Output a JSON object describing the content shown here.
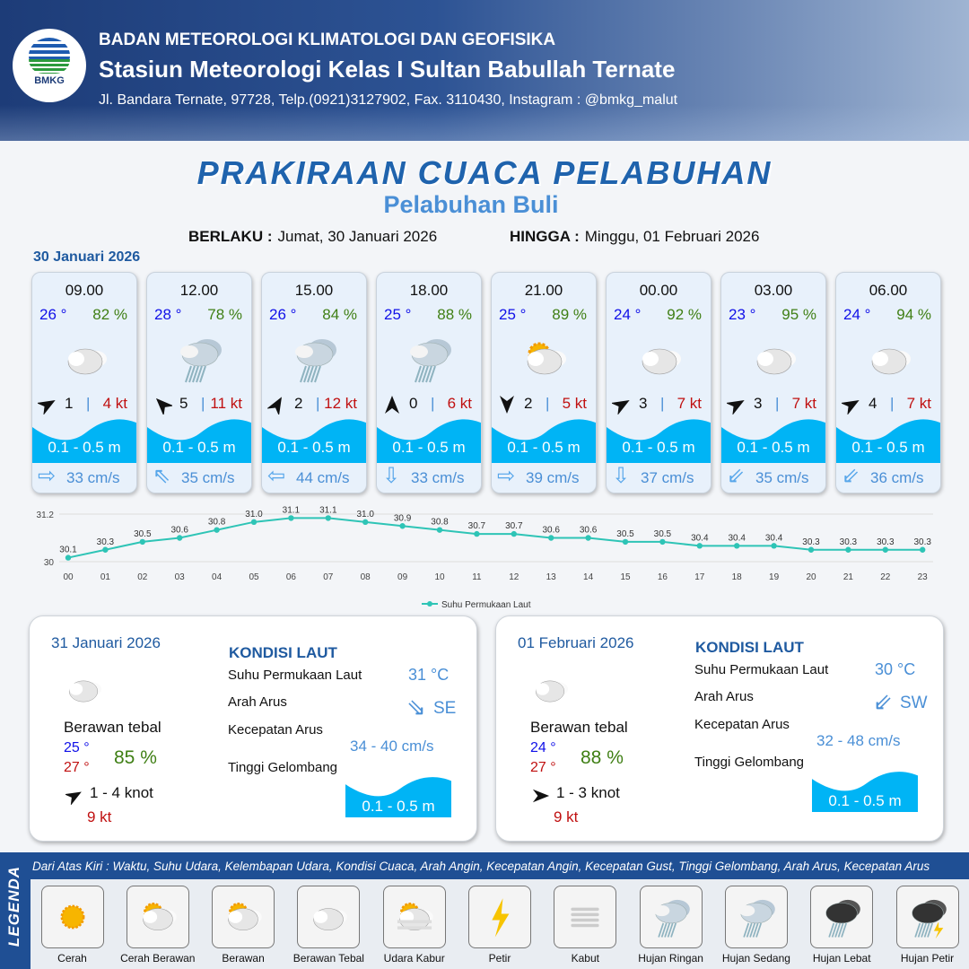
{
  "header": {
    "org": "BADAN METEOROLOGI KLIMATOLOGI DAN GEOFISIKA",
    "station": "Stasiun Meteorologi Kelas I Sultan Babullah Ternate",
    "address": "Jl. Bandara Ternate, 97728, Telp.(0921)3127902, Fax. 3110430, Instagram : @bmkg_malut",
    "logo_text": "BMKG"
  },
  "title": "PRAKIRAAN CUACA PELABUHAN",
  "subtitle": "Pelabuhan Buli",
  "validity": {
    "from_label": "BERLAKU :",
    "from": "Jumat, 30 Januari 2026",
    "to_label": "HINGGA :",
    "to": "Minggu, 01 Februari 2026"
  },
  "day_label": "30 Januari 2026",
  "forecasts": [
    {
      "time": "09.00",
      "temp": "26 °",
      "rh": "82 %",
      "weather": "berawan-tebal",
      "wind_dir_deg": 60,
      "wind": "1",
      "gust": "4 kt",
      "wave": "0.1 - 0.5 m",
      "current_dir": "east",
      "current_arrow": "⇨",
      "current": "33 cm/s"
    },
    {
      "time": "12.00",
      "temp": "28 °",
      "rh": "78 %",
      "weather": "hujan-ringan",
      "wind_dir_deg": 315,
      "wind": "5",
      "gust": "11 kt",
      "wave": "0.1 - 0.5 m",
      "current_dir": "northwest",
      "current_arrow": "⇖",
      "current": "35 cm/s"
    },
    {
      "time": "15.00",
      "temp": "26 °",
      "rh": "84 %",
      "weather": "hujan-ringan",
      "wind_dir_deg": 30,
      "wind": "2",
      "gust": "12 kt",
      "wave": "0.1 - 0.5 m",
      "current_dir": "west",
      "current_arrow": "⇦",
      "current": "44 cm/s"
    },
    {
      "time": "18.00",
      "temp": "25 °",
      "rh": "88 %",
      "weather": "hujan-ringan",
      "wind_dir_deg": 0,
      "wind": "0",
      "gust": "6 kt",
      "wave": "0.1 - 0.5 m",
      "current_dir": "south",
      "current_arrow": "⇩",
      "current": "33 cm/s"
    },
    {
      "time": "21.00",
      "temp": "25 °",
      "rh": "89 %",
      "weather": "cerah-berawan",
      "wind_dir_deg": 180,
      "wind": "2",
      "gust": "5 kt",
      "wave": "0.1 - 0.5 m",
      "current_dir": "east",
      "current_arrow": "⇨",
      "current": "39 cm/s"
    },
    {
      "time": "00.00",
      "temp": "24 °",
      "rh": "92 %",
      "weather": "berawan-tebal",
      "wind_dir_deg": 60,
      "wind": "3",
      "gust": "7 kt",
      "wave": "0.1 - 0.5 m",
      "current_dir": "south",
      "current_arrow": "⇩",
      "current": "37 cm/s"
    },
    {
      "time": "03.00",
      "temp": "23 °",
      "rh": "95 %",
      "weather": "berawan-tebal",
      "wind_dir_deg": 60,
      "wind": "3",
      "gust": "7 kt",
      "wave": "0.1 - 0.5 m",
      "current_dir": "southwest",
      "current_arrow": "⇙",
      "current": "35 cm/s"
    },
    {
      "time": "06.00",
      "temp": "24 °",
      "rh": "94 %",
      "weather": "berawan-tebal",
      "wind_dir_deg": 60,
      "wind": "4",
      "gust": "7 kt",
      "wave": "0.1 - 0.5 m",
      "current_dir": "southwest",
      "current_arrow": "⇙",
      "current": "36 cm/s"
    }
  ],
  "chart_data": {
    "type": "line",
    "x": [
      "00",
      "01",
      "02",
      "03",
      "04",
      "05",
      "06",
      "07",
      "08",
      "09",
      "10",
      "11",
      "12",
      "13",
      "14",
      "15",
      "16",
      "17",
      "18",
      "19",
      "20",
      "21",
      "22",
      "23"
    ],
    "series": [
      {
        "name": "Suhu Permukaan Laut",
        "values": [
          30.1,
          30.3,
          30.5,
          30.6,
          30.8,
          31.0,
          31.1,
          31.1,
          31.0,
          30.9,
          30.8,
          30.7,
          30.7,
          30.6,
          30.6,
          30.5,
          30.5,
          30.4,
          30.4,
          30.4,
          30.3,
          30.3,
          30.3,
          30.3
        ],
        "color": "#2ec4b6"
      }
    ],
    "ylim": [
      30,
      31.2
    ],
    "yticks": [
      "30",
      "31.2"
    ],
    "legend": "bottom",
    "grid": true
  },
  "days": [
    {
      "date": "31 Januari 2026",
      "weather": "Berawan tebal",
      "tmin": "25 °",
      "tmax": "27 °",
      "rh": "85 %",
      "wind_dir_deg": 60,
      "wind": "1  - 4 knot",
      "gust": "9 kt",
      "kondisi": "KONDISI LAUT",
      "sst_label": "Suhu Permukaan Laut",
      "sst": "31 °C",
      "arah_label": "Arah Arus",
      "arah": "SE",
      "arah_arrow": "⇘",
      "kec_label": "Kecepatan Arus",
      "kec": "34  - 40 cm/s",
      "tg_label": "Tinggi Gelombang",
      "wave": "0.1 - 0.5 m"
    },
    {
      "date": "01 Februari 2026",
      "weather": "Berawan tebal",
      "tmin": "24 °",
      "tmax": "27 °",
      "rh": "88 %",
      "wind_dir_deg": 90,
      "wind": "1  - 3 knot",
      "gust": "9 kt",
      "kondisi": "KONDISI LAUT",
      "sst_label": "Suhu Permukaan Laut",
      "sst": "30 °C",
      "arah_label": "Arah Arus",
      "arah": "SW",
      "arah_arrow": "⇙",
      "kec_label": "Kecepatan Arus",
      "kec": "32  - 48 cm/s",
      "tg_label": "Tinggi Gelombang",
      "wave": "0.1 - 0.5 m"
    }
  ],
  "legend": {
    "title": "LEGENDA",
    "description": "Dari Atas Kiri : Waktu, Suhu Udara, Kelembapan Udara, Kondisi Cuaca, Arah Angin, Kecepatan Angin, Kecepatan Gust, Tinggi Gelombang, Arah Arus, Kecepatan Arus",
    "items": [
      {
        "name": "Cerah",
        "icon": "sun"
      },
      {
        "name": "Cerah Berawan",
        "icon": "sun-cloud"
      },
      {
        "name": "Berawan",
        "icon": "cloud-sun"
      },
      {
        "name": "Berawan Tebal",
        "icon": "cloud"
      },
      {
        "name": "Udara Kabur",
        "icon": "haze"
      },
      {
        "name": "Petir",
        "icon": "lightning"
      },
      {
        "name": "Kabut",
        "icon": "fog"
      },
      {
        "name": "Hujan Ringan",
        "icon": "rain-light"
      },
      {
        "name": "Hujan Sedang",
        "icon": "rain-moderate"
      },
      {
        "name": "Hujan Lebat",
        "icon": "rain-heavy"
      },
      {
        "name": "Hujan Petir",
        "icon": "thunderstorm"
      }
    ]
  },
  "colors": {
    "header": "#1d3c78",
    "title": "#1f63ad",
    "wave": "#00b4f5",
    "temp": "#1010e8",
    "humidity": "#3f7f14",
    "gust": "#c01010"
  }
}
